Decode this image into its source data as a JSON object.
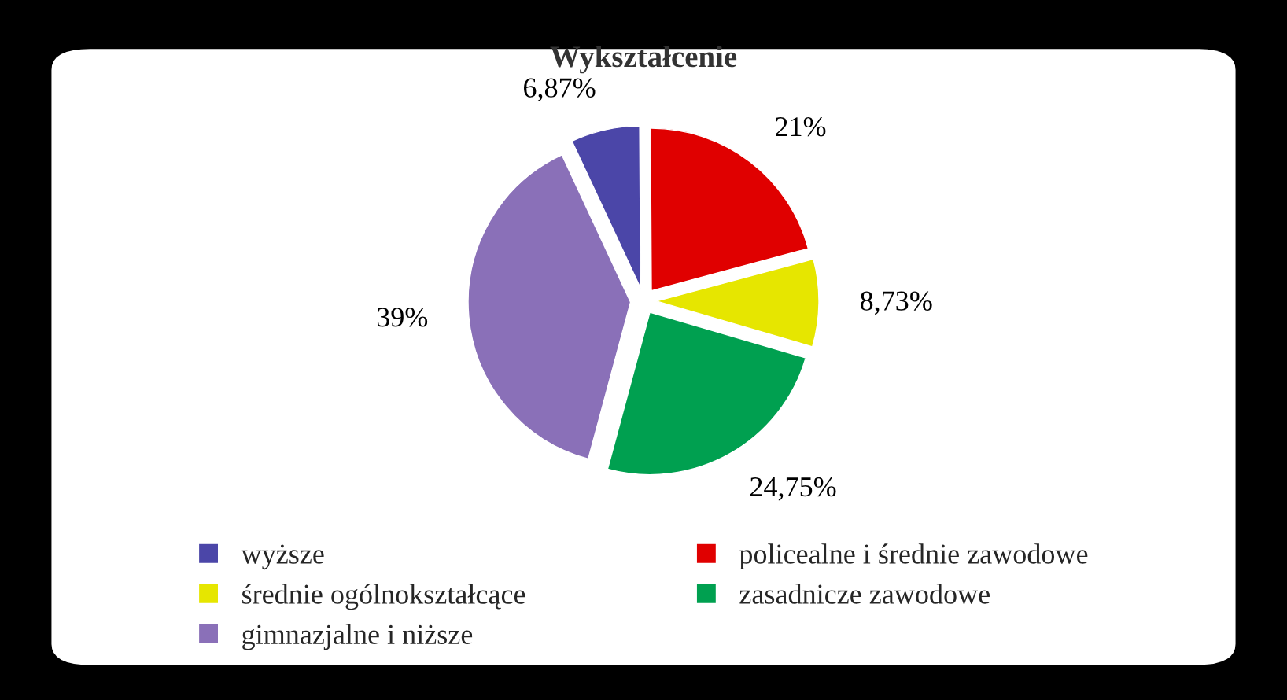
{
  "chart_data": {
    "type": "pie",
    "title": "Wykształcenie",
    "categories": [
      "wyższe",
      "policealne i średnie zawodowe",
      "średnie ogólnokształcące",
      "zasadnicze zawodowe",
      "gimnazjalne i niższe"
    ],
    "values": [
      6.87,
      21,
      8.73,
      24.75,
      39
    ],
    "value_labels": [
      "6,87%",
      "21%",
      "8,73%",
      "24,75%",
      "39%"
    ],
    "colors": [
      "#4b46a8",
      "#e00000",
      "#e6e600",
      "#00a050",
      "#8a70b8"
    ],
    "legend": "bottom"
  }
}
